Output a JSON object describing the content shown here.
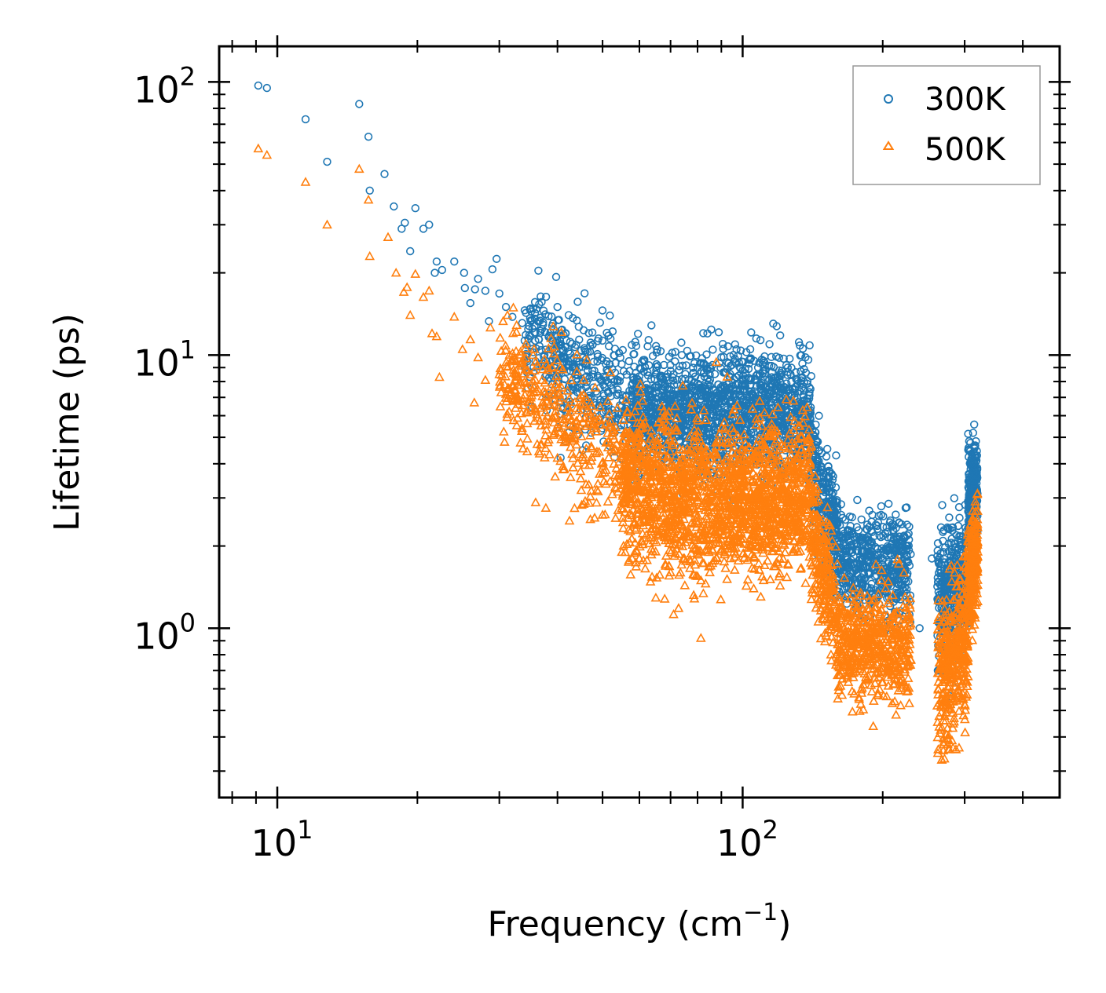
{
  "chart_data": {
    "type": "scatter",
    "title": "",
    "xlabel": "Frequency (cm",
    "xlabel_sup": "−1",
    "xlabel_end": ")",
    "ylabel": "Lifetime (ps)",
    "xscale": "log",
    "yscale": "log",
    "xlim": [
      7.5,
      480
    ],
    "ylim": [
      0.24,
      135
    ],
    "x_ticks": [
      {
        "value": 10,
        "base": "10",
        "exp": "1"
      },
      {
        "value": 100,
        "base": "10",
        "exp": "2"
      }
    ],
    "y_ticks": [
      {
        "value": 1,
        "base": "10",
        "exp": "0"
      },
      {
        "value": 10,
        "base": "10",
        "exp": "1"
      },
      {
        "value": 100,
        "base": "10",
        "exp": "2"
      }
    ],
    "legend_position": "upper right",
    "series": [
      {
        "name": "300K",
        "marker": "circle",
        "color": "#1f77b4",
        "points": [
          [
            9.1,
            97
          ],
          [
            9.5,
            95
          ],
          [
            11.5,
            73
          ],
          [
            12.8,
            51
          ],
          [
            15,
            83
          ],
          [
            15.7,
            63
          ],
          [
            15.8,
            40
          ],
          [
            17,
            46
          ],
          [
            17.8,
            35
          ],
          [
            18.5,
            29
          ],
          [
            18.8,
            30.5
          ],
          [
            19.3,
            24
          ],
          [
            19.8,
            34.5
          ],
          [
            20.6,
            29
          ],
          [
            21.2,
            30
          ],
          [
            21.8,
            20
          ],
          [
            22,
            22
          ],
          [
            22.6,
            20.5
          ],
          [
            24,
            22
          ],
          [
            25.2,
            20
          ],
          [
            25.3,
            17.6
          ],
          [
            26,
            15.5
          ],
          [
            26.6,
            17.4
          ],
          [
            27,
            19
          ],
          [
            28,
            17.2
          ],
          [
            28.5,
            13.3
          ],
          [
            29,
            20.6
          ],
          [
            29.6,
            22.5
          ],
          [
            30,
            16.8
          ],
          [
            31,
            15
          ],
          [
            32,
            13.8
          ],
          [
            33.6,
            13.1
          ],
          [
            34,
            11.3
          ],
          [
            36.5,
            11.4
          ],
          [
            37.5,
            10
          ],
          [
            40,
            15
          ],
          [
            43,
            11
          ],
          [
            47,
            10.8
          ],
          [
            49,
            11.5
          ],
          [
            53,
            8
          ],
          [
            55,
            6.5
          ],
          [
            57,
            9.5
          ],
          [
            60,
            8
          ],
          [
            65,
            8.5
          ],
          [
            70,
            6.5
          ],
          [
            74,
            10
          ],
          [
            77,
            9.9
          ],
          [
            80,
            9
          ],
          [
            85,
            8.5
          ],
          [
            90,
            7.2
          ],
          [
            97,
            10.5
          ],
          [
            103,
            8.9
          ],
          [
            107,
            11.5
          ],
          [
            112,
            6.5
          ],
          [
            118,
            7
          ],
          [
            125,
            9
          ],
          [
            132,
            6.2
          ],
          [
            140,
            5
          ],
          [
            148,
            3.8
          ],
          [
            155,
            2.5
          ],
          [
            162,
            1.9
          ],
          [
            170,
            2.2
          ],
          [
            180,
            2.5
          ],
          [
            190,
            2.6
          ],
          [
            200,
            1.8
          ],
          [
            212,
            2.1
          ],
          [
            225,
            2
          ],
          [
            240,
            1
          ],
          [
            255,
            1.8
          ],
          [
            270,
            1.9
          ],
          [
            285,
            1.6
          ],
          [
            298,
            1.3
          ],
          [
            310,
            4
          ],
          [
            318,
            2.9
          ]
        ],
        "bands": [
          {
            "x": [
              34,
              60
            ],
            "y_center": [
              11.5,
              6.3
            ],
            "spread": 0.11,
            "n": 420
          },
          {
            "x": [
              58,
              140
            ],
            "y_center": [
              6.3,
              6.2
            ],
            "spread": 0.11,
            "n": 1500
          },
          {
            "x": [
              140,
              160
            ],
            "y_center": [
              4.2,
              2.2
            ],
            "spread": 0.1,
            "n": 250
          },
          {
            "x": [
              160,
              230
            ],
            "y_center": [
              1.75,
              1.65
            ],
            "spread": 0.09,
            "n": 520
          },
          {
            "x": [
              262,
              305
            ],
            "y_center": [
              1.3,
              1.5
            ],
            "spread": 0.12,
            "n": 380
          },
          {
            "x": [
              305,
              320
            ],
            "y_center": [
              2.9,
              3.2
            ],
            "spread": 0.09,
            "n": 250
          }
        ]
      },
      {
        "name": "500K",
        "marker": "triangle",
        "color": "#ff7f0e",
        "points": [
          [
            9.1,
            57
          ],
          [
            9.5,
            54
          ],
          [
            11.5,
            43
          ],
          [
            12.8,
            30
          ],
          [
            15,
            48
          ],
          [
            15.7,
            37
          ],
          [
            15.8,
            23
          ],
          [
            17.3,
            27
          ],
          [
            18,
            20
          ],
          [
            18.7,
            17
          ],
          [
            19,
            17.7
          ],
          [
            19.3,
            14
          ],
          [
            19.8,
            19.8
          ],
          [
            20.6,
            16.3
          ],
          [
            21.2,
            17.2
          ],
          [
            21.5,
            12
          ],
          [
            22,
            11.7
          ],
          [
            22.3,
            8.3
          ],
          [
            24,
            13.8
          ],
          [
            25,
            10.5
          ],
          [
            26,
            11.4
          ],
          [
            26.5,
            6.7
          ],
          [
            27,
            9.8
          ],
          [
            28,
            8.1
          ],
          [
            28.7,
            12.6
          ],
          [
            30,
            8.5
          ],
          [
            31,
            7.2
          ],
          [
            33,
            6.9
          ],
          [
            35,
            7
          ],
          [
            37,
            4.7
          ],
          [
            40,
            4.2
          ],
          [
            45,
            3.2
          ],
          [
            50,
            2.6
          ],
          [
            55,
            1.9
          ],
          [
            60,
            1.8
          ],
          [
            65,
            2.3
          ],
          [
            70,
            1.6
          ],
          [
            75,
            1.8
          ],
          [
            80,
            1.55
          ],
          [
            85,
            1.6
          ],
          [
            90,
            3.3
          ],
          [
            95,
            5.4
          ],
          [
            100,
            4.5
          ],
          [
            105,
            2.1
          ],
          [
            110,
            5.5
          ],
          [
            115,
            4.3
          ],
          [
            120,
            3.5
          ],
          [
            125,
            4
          ],
          [
            130,
            3
          ],
          [
            140,
            3.2
          ],
          [
            150,
            1.35
          ],
          [
            158,
            1.05
          ],
          [
            163,
            0.9
          ],
          [
            170,
            0.7
          ],
          [
            178,
            0.55
          ],
          [
            185,
            0.65
          ],
          [
            190,
            0.9
          ],
          [
            200,
            0.72
          ],
          [
            210,
            0.68
          ],
          [
            220,
            0.62
          ],
          [
            228,
            1.1
          ],
          [
            262,
            0.52
          ],
          [
            268,
            0.33
          ],
          [
            275,
            0.8
          ],
          [
            285,
            0.96
          ],
          [
            298,
            0.55
          ],
          [
            310,
            1.1
          ],
          [
            318,
            1.8
          ]
        ],
        "bands": [
          {
            "x": [
              30,
              58
            ],
            "y_center": [
              8.8,
              3.7
            ],
            "spread": 0.12,
            "n": 420
          },
          {
            "x": [
              55,
              90
            ],
            "y_center": [
              3.4,
              2.8
            ],
            "spread": 0.14,
            "n": 900
          },
          {
            "x": [
              90,
              140
            ],
            "y_center": [
              2.8,
              3.2
            ],
            "spread": 0.13,
            "n": 900
          },
          {
            "x": [
              140,
              160
            ],
            "y_center": [
              2.4,
              1.05
            ],
            "spread": 0.11,
            "n": 250
          },
          {
            "x": [
              160,
              230
            ],
            "y_center": [
              0.9,
              0.82
            ],
            "spread": 0.1,
            "n": 520
          },
          {
            "x": [
              262,
              305
            ],
            "y_center": [
              0.62,
              0.95
            ],
            "spread": 0.14,
            "n": 380
          },
          {
            "x": [
              305,
              320
            ],
            "y_center": [
              1.5,
              1.9
            ],
            "spread": 0.1,
            "n": 250
          }
        ]
      }
    ]
  }
}
